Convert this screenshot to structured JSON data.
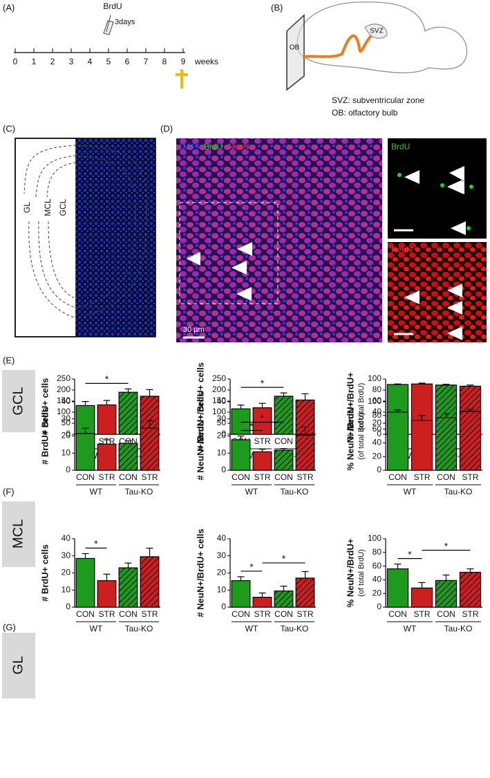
{
  "panel_labels": [
    "(A)",
    "(B)",
    "(C)",
    "(D)",
    "(E)",
    "(F)",
    "(G)"
  ],
  "timeline": {
    "ticks": [
      0,
      1,
      2,
      3,
      4,
      5,
      6,
      7,
      8,
      9
    ],
    "unit": "weeks",
    "injection": "BrdU",
    "duration": "3days"
  },
  "brain": {
    "svz": "SVZ",
    "ob": "OB",
    "legend": [
      "SVZ: subventricular zone",
      "OB: olfactory bulb"
    ]
  },
  "ob_section": {
    "layers": [
      "GL",
      "MCL",
      "GCL"
    ]
  },
  "micrograph": {
    "merge_labels": [
      "DAPI",
      "BrdU",
      "NeuN"
    ],
    "scale_bar": "30 µm",
    "insets": [
      "BrdU",
      "NeuN"
    ]
  },
  "row_labels": [
    "GCL",
    "MCL",
    "GL"
  ],
  "chart_data": [
    {
      "type": "bar",
      "ylabel": "# BrdU+ cells",
      "categories": [
        "CON",
        "STR",
        "CON",
        "STR"
      ],
      "groups": [
        "WT",
        "Tau-KO"
      ],
      "colors": [
        "#1e9a1e",
        "#cc1f1f",
        "#1e9a1e",
        "#cc1f1f"
      ],
      "hatched": [
        false,
        false,
        true,
        true
      ],
      "values": [
        130,
        133,
        190,
        172
      ],
      "errors": [
        18,
        20,
        15,
        30
      ],
      "ylim": [
        0,
        250
      ],
      "yticks": [
        0,
        50,
        100,
        150,
        200,
        250
      ],
      "significance": [
        {
          "between": [
            0,
            2
          ],
          "label": "*"
        }
      ]
    },
    {
      "type": "bar",
      "ylabel": "# NeuN+/BrdU+ cells",
      "categories": [
        "CON",
        "STR",
        "CON",
        "STR"
      ],
      "groups": [
        "WT",
        "Tau-KO"
      ],
      "colors": [
        "#1e9a1e",
        "#cc1f1f",
        "#1e9a1e",
        "#cc1f1f"
      ],
      "hatched": [
        false,
        false,
        true,
        true
      ],
      "values": [
        115,
        120,
        172,
        155
      ],
      "errors": [
        17,
        20,
        15,
        28
      ],
      "ylim": [
        0,
        250
      ],
      "yticks": [
        0,
        50,
        100,
        150,
        200,
        250
      ],
      "significance": [
        {
          "between": [
            0,
            2
          ],
          "label": "*"
        }
      ]
    },
    {
      "type": "bar",
      "ylabel": "% NeuN+/BrdU+",
      "ysublabel": "(of total BrdU)",
      "categories": [
        "CON",
        "STR",
        "CON",
        "STR"
      ],
      "groups": [
        "WT",
        "Tau-KO"
      ],
      "colors": [
        "#1e9a1e",
        "#cc1f1f",
        "#1e9a1e",
        "#cc1f1f"
      ],
      "hatched": [
        false,
        false,
        true,
        true
      ],
      "values": [
        90,
        91,
        89,
        87
      ],
      "errors": [
        1,
        1.5,
        1.5,
        2
      ],
      "ylim": [
        0,
        100
      ],
      "yticks": [
        0,
        20,
        40,
        60,
        80,
        100
      ],
      "significance": []
    },
    {
      "type": "bar",
      "ylabel": "# BrdU+ cells",
      "categories": [
        "CON",
        "STR",
        "CON",
        "STR"
      ],
      "groups": [
        "WT",
        "Tau-KO"
      ],
      "colors": [
        "#1e9a1e",
        "#cc1f1f",
        "#1e9a1e",
        "#cc1f1f"
      ],
      "hatched": [
        false,
        false,
        true,
        true
      ],
      "values": [
        21.5,
        15.3,
        15.7,
        24.5
      ],
      "errors": [
        3,
        2.5,
        1.5,
        4.5
      ],
      "ylim": [
        0,
        40
      ],
      "yticks": [
        0,
        10,
        20,
        30,
        40
      ],
      "significance": []
    },
    {
      "type": "bar",
      "ylabel": "# NeuN+/BrdU+ cells",
      "categories": [
        "CON",
        "STR",
        "CON",
        "STR"
      ],
      "groups": [
        "WT",
        "Tau-KO"
      ],
      "colors": [
        "#1e9a1e",
        "#cc1f1f",
        "#1e9a1e",
        "#cc1f1f"
      ],
      "hatched": [
        false,
        false,
        true,
        true
      ],
      "values": [
        17.8,
        10.8,
        11.7,
        20.5
      ],
      "errors": [
        2.2,
        1.5,
        1,
        4.8
      ],
      "ylim": [
        0,
        40
      ],
      "yticks": [
        0,
        10,
        20,
        30,
        40
      ],
      "significance": [
        {
          "between": [
            0,
            1
          ],
          "label": "*"
        },
        {
          "between": [
            0,
            2
          ],
          "label": "*"
        }
      ]
    },
    {
      "type": "bar",
      "ylabel": "% NeuN+/BrdU+",
      "ysublabel": "(of total BrdU)",
      "categories": [
        "CON",
        "STR",
        "CON",
        "STR"
      ],
      "groups": [
        "WT",
        "Tau-KO"
      ],
      "colors": [
        "#1e9a1e",
        "#cc1f1f",
        "#1e9a1e",
        "#cc1f1f"
      ],
      "hatched": [
        false,
        false,
        true,
        true
      ],
      "values": [
        85,
        73,
        77,
        86
      ],
      "errors": [
        3,
        7,
        6,
        3
      ],
      "ylim": [
        0,
        100
      ],
      "yticks": [
        0,
        20,
        40,
        60,
        80,
        100
      ],
      "significance": []
    },
    {
      "type": "bar",
      "ylabel": "# BrdU+ cells",
      "categories": [
        "CON",
        "STR",
        "CON",
        "STR"
      ],
      "groups": [
        "WT",
        "Tau-KO"
      ],
      "colors": [
        "#1e9a1e",
        "#cc1f1f",
        "#1e9a1e",
        "#cc1f1f"
      ],
      "hatched": [
        false,
        false,
        true,
        true
      ],
      "values": [
        28.5,
        15.5,
        23,
        29.5
      ],
      "errors": [
        2.8,
        3.8,
        2.8,
        5
      ],
      "ylim": [
        0,
        40
      ],
      "yticks": [
        0,
        10,
        20,
        30,
        40
      ],
      "significance": [
        {
          "between": [
            0,
            1
          ],
          "label": "*"
        }
      ]
    },
    {
      "type": "bar",
      "ylabel": "# NeuN+/BrdU+ cells",
      "categories": [
        "CON",
        "STR",
        "CON",
        "STR"
      ],
      "groups": [
        "WT",
        "Tau-KO"
      ],
      "colors": [
        "#1e9a1e",
        "#cc1f1f",
        "#1e9a1e",
        "#cc1f1f"
      ],
      "hatched": [
        false,
        false,
        true,
        true
      ],
      "values": [
        15.5,
        5.8,
        9.5,
        17
      ],
      "errors": [
        2.3,
        2.5,
        2.8,
        3.8
      ],
      "ylim": [
        0,
        40
      ],
      "yticks": [
        0,
        10,
        20,
        30,
        40
      ],
      "significance": [
        {
          "between": [
            0,
            1
          ],
          "label": "*"
        },
        {
          "between": [
            1,
            3
          ],
          "label": "*"
        }
      ]
    },
    {
      "type": "bar",
      "ylabel": "% NeuN+/BrdU+",
      "ysublabel": "(of total BrdU)",
      "categories": [
        "CON",
        "STR",
        "CON",
        "STR"
      ],
      "groups": [
        "WT",
        "Tau-KO"
      ],
      "colors": [
        "#1e9a1e",
        "#cc1f1f",
        "#1e9a1e",
        "#cc1f1f"
      ],
      "hatched": [
        false,
        false,
        true,
        true
      ],
      "values": [
        56,
        28,
        39,
        51
      ],
      "errors": [
        7,
        8,
        8,
        5
      ],
      "ylim": [
        0,
        100
      ],
      "yticks": [
        0,
        20,
        40,
        60,
        80,
        100
      ],
      "significance": [
        {
          "between": [
            0,
            1
          ],
          "label": "*"
        },
        {
          "between": [
            1,
            3
          ],
          "label": "*"
        }
      ]
    }
  ]
}
